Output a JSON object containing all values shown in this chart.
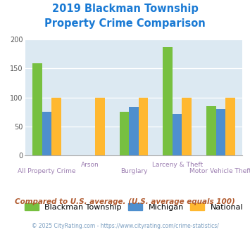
{
  "title_line1": "2019 Blackman Township",
  "title_line2": "Property Crime Comparison",
  "title_color": "#1a7ad4",
  "categories": [
    "All Property Crime",
    "Arson",
    "Burglary",
    "Larceny & Theft",
    "Motor Vehicle Theft"
  ],
  "blackman": [
    159,
    0,
    75,
    187,
    85
  ],
  "michigan": [
    75,
    0,
    84,
    72,
    80
  ],
  "national": [
    100,
    100,
    100,
    100,
    100
  ],
  "color_blackman": "#77c040",
  "color_michigan": "#4e8fce",
  "color_national": "#ffb830",
  "ylim": [
    0,
    200
  ],
  "yticks": [
    0,
    50,
    100,
    150,
    200
  ],
  "plot_bg": "#dce9f2",
  "legend_labels": [
    "Blackman Township",
    "Michigan",
    "National"
  ],
  "footer_text": "Compared to U.S. average. (U.S. average equals 100)",
  "footer_color": "#b05a2f",
  "copyright_text": "© 2025 CityRating.com - https://www.cityrating.com/crime-statistics/",
  "copyright_color": "#7a9ec0",
  "xlabel_color": "#9b7db0",
  "bar_width": 0.22
}
